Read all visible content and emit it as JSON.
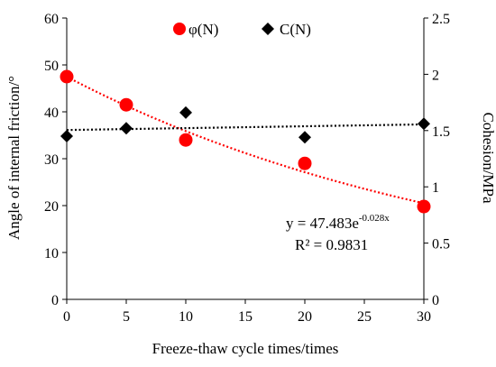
{
  "chart_data": {
    "type": "scatter",
    "x_axis": {
      "label": "Freeze-thaw cycle times/times",
      "range": [
        0,
        30
      ],
      "ticks": [
        "0",
        "5",
        "10",
        "15",
        "20",
        "25",
        "30"
      ]
    },
    "y_axis_left": {
      "label": "Angle of internal friction/°",
      "range": [
        0,
        60
      ],
      "ticks": [
        "0",
        "10",
        "20",
        "30",
        "40",
        "50",
        "60"
      ]
    },
    "y_axis_right": {
      "label": "Cohesion/MPa",
      "range": [
        0,
        2.5
      ],
      "ticks": [
        "0",
        "0.5",
        "1",
        "1.5",
        "2",
        "2.5"
      ]
    },
    "series": [
      {
        "name": "φ(N)",
        "axis": "left",
        "marker": "circle",
        "color": "#ff0000",
        "x": [
          0,
          5,
          10,
          20,
          30
        ],
        "y": [
          47.5,
          41.5,
          34,
          29,
          19.8
        ]
      },
      {
        "name": "C(N)",
        "axis": "right",
        "marker": "diamond",
        "color": "#000000",
        "x": [
          0,
          5,
          10,
          20,
          30
        ],
        "y": [
          1.45,
          1.52,
          1.66,
          1.44,
          1.56
        ]
      }
    ],
    "trendlines": [
      {
        "series": "φ(N)",
        "type": "exponential",
        "a": 47.483,
        "b": -0.028,
        "color": "#ff0000",
        "style": "dotted"
      },
      {
        "series": "C(N)",
        "type": "linear",
        "start": 1.505,
        "end": 1.555,
        "color": "#000000",
        "style": "dotted"
      }
    ],
    "annotation": {
      "equation_base": "y = 47.483e",
      "equation_exp": "-0.028x",
      "r2": "R² = 0.9831"
    },
    "legend": {
      "position": "top-center",
      "items": [
        "φ(N)",
        "C(N)"
      ]
    },
    "grid": false
  }
}
